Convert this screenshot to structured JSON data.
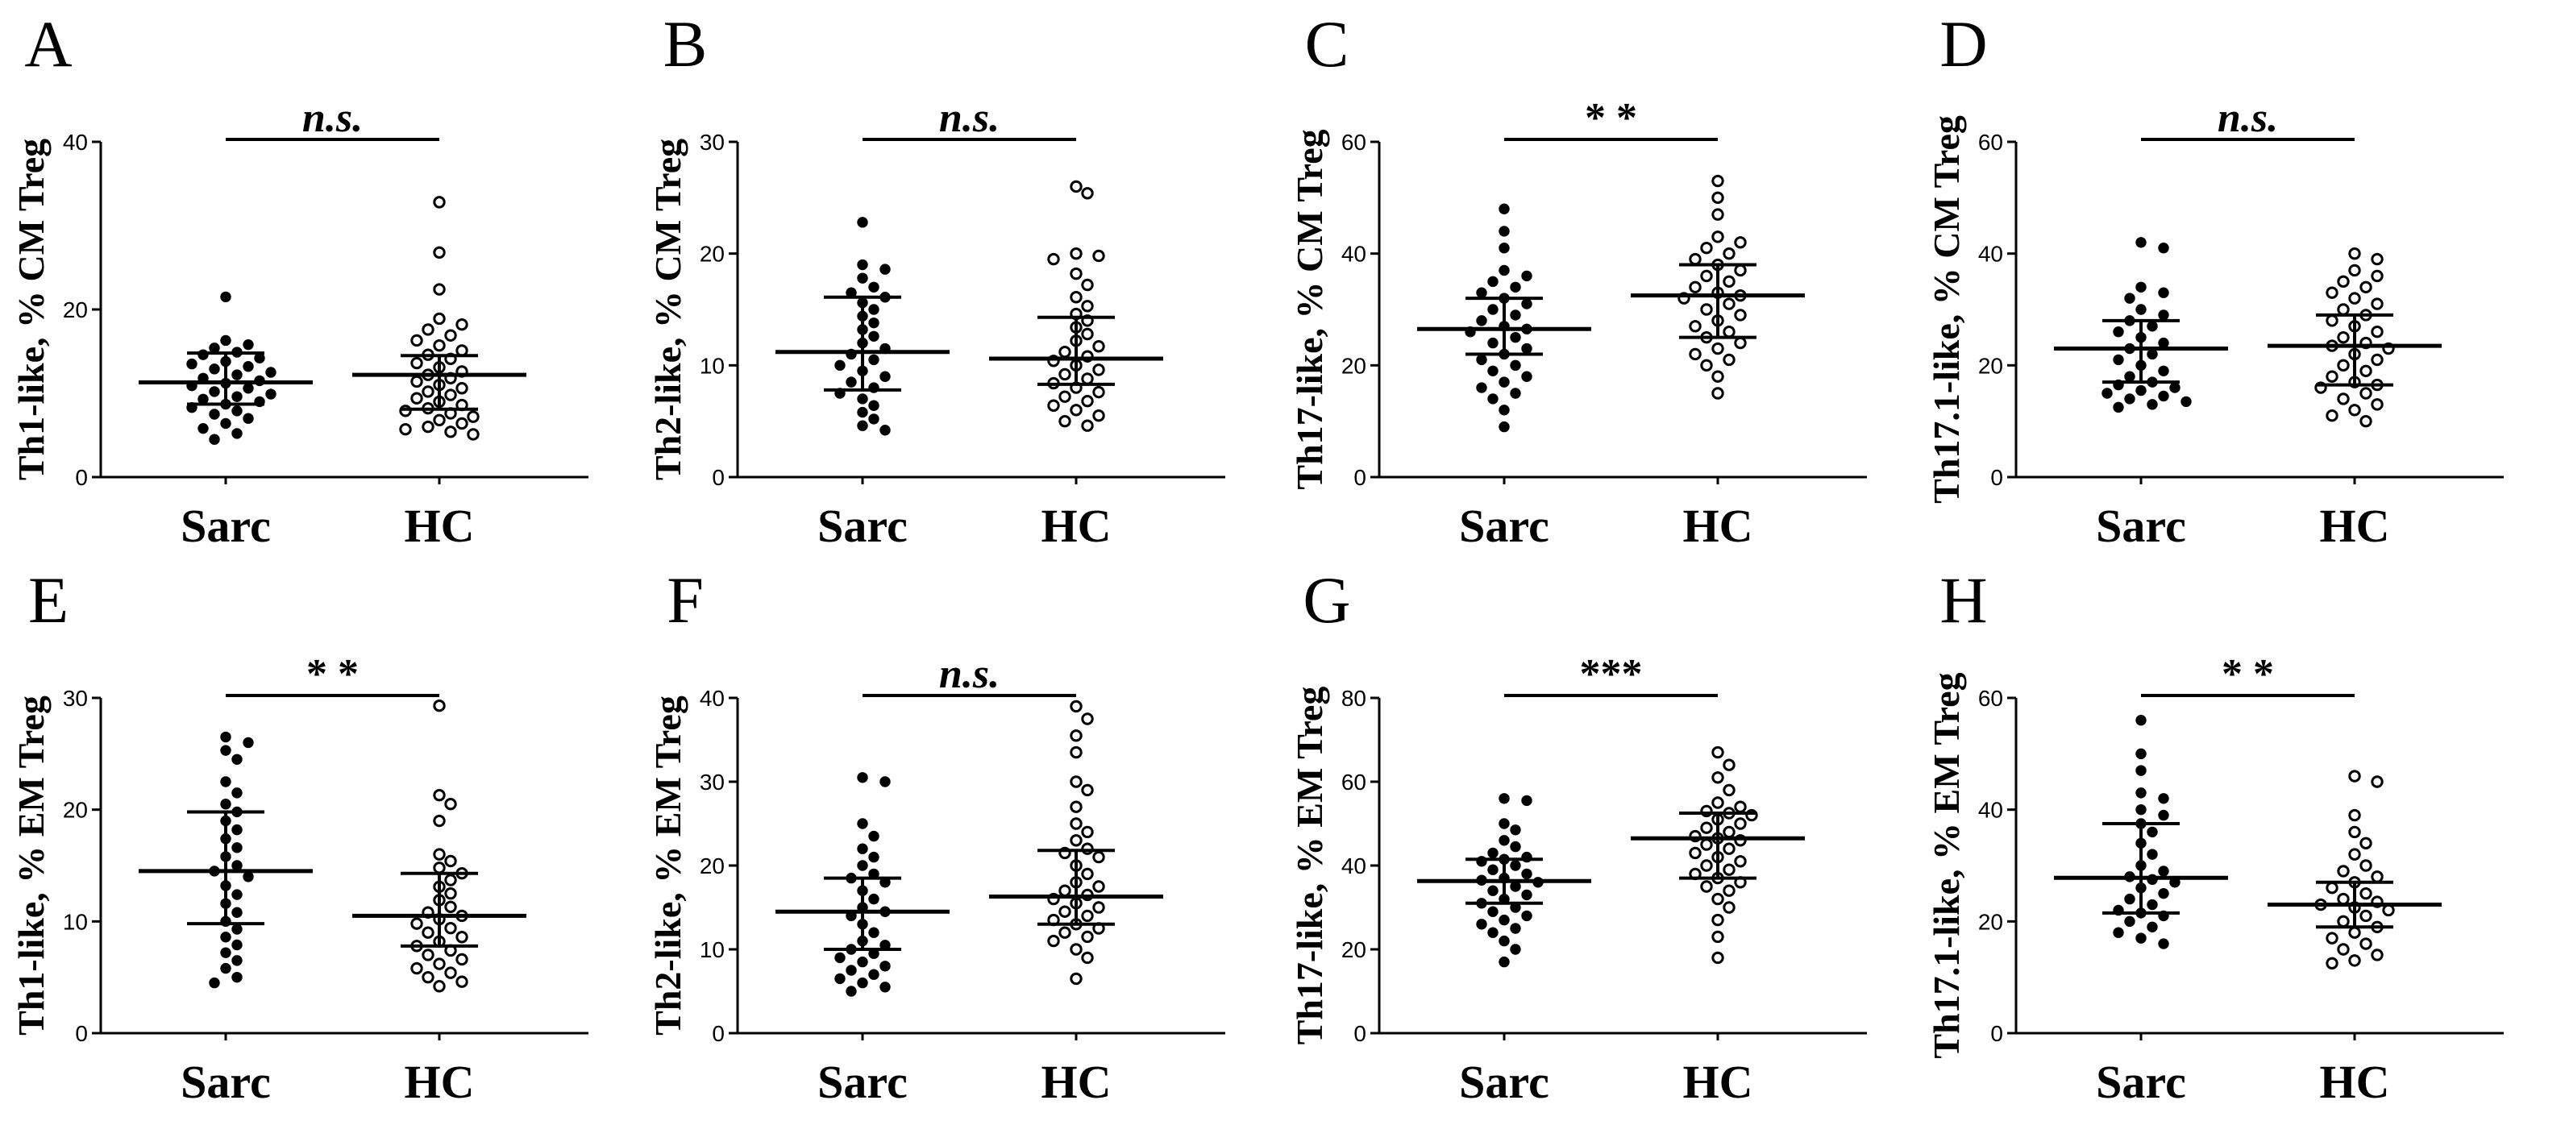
{
  "chart_data": [
    {
      "panel": "A",
      "type": "scatter",
      "ylabel": "Th1-like, % CM Treg",
      "ylim": [
        0,
        40
      ],
      "yticks": [
        0,
        20,
        40
      ],
      "categories": [
        "Sarc",
        "HC"
      ],
      "significance": "n.s.",
      "series": [
        {
          "name": "Sarc",
          "marker": "filled",
          "median": 11.3,
          "iqr": [
            8.7,
            14.8
          ],
          "values": [
            21.5,
            16.3,
            15.8,
            15.4,
            14.9,
            14.6,
            14.2,
            13.8,
            13.5,
            13.2,
            12.9,
            12.5,
            12.2,
            11.8,
            11.5,
            11.2,
            10.9,
            10.6,
            10.2,
            9.9,
            9.6,
            9.3,
            9.0,
            8.7,
            8.3,
            7.9,
            7.5,
            7.0,
            6.4,
            5.8,
            5.2,
            4.5
          ]
        },
        {
          "name": "HC",
          "marker": "open",
          "median": 12.2,
          "iqr": [
            8.1,
            14.5
          ],
          "values": [
            32.8,
            26.8,
            22.4,
            18.9,
            18.2,
            17.6,
            16.9,
            16.3,
            15.7,
            15.1,
            14.6,
            14.1,
            13.6,
            13.1,
            12.6,
            12.2,
            11.8,
            11.4,
            11.0,
            10.6,
            10.2,
            9.8,
            9.4,
            9.0,
            8.6,
            8.2,
            7.9,
            7.6,
            7.2,
            6.8,
            6.4,
            6.0,
            5.7,
            5.4,
            5.1
          ]
        }
      ]
    },
    {
      "panel": "B",
      "type": "scatter",
      "ylabel": "Th2-like, % CM Treg",
      "ylim": [
        0,
        30
      ],
      "yticks": [
        0,
        10,
        20,
        30
      ],
      "categories": [
        "Sarc",
        "HC"
      ],
      "significance": "n.s.",
      "series": [
        {
          "name": "Sarc",
          "marker": "filled",
          "median": 11.2,
          "iqr": [
            7.8,
            16.1
          ],
          "values": [
            22.8,
            19.0,
            18.6,
            17.8,
            17.0,
            16.5,
            16.1,
            15.6,
            15.0,
            14.4,
            13.8,
            13.2,
            12.6,
            12.0,
            11.5,
            11.0,
            10.5,
            10.0,
            9.5,
            9.0,
            8.5,
            8.0,
            7.5,
            7.0,
            6.4,
            5.8,
            5.2,
            4.6,
            4.2
          ]
        },
        {
          "name": "HC",
          "marker": "open",
          "median": 10.6,
          "iqr": [
            8.3,
            14.3
          ],
          "values": [
            26.0,
            25.4,
            20.0,
            19.8,
            19.5,
            18.2,
            17.2,
            16.1,
            15.3,
            14.6,
            14.0,
            13.4,
            12.8,
            12.2,
            11.7,
            11.2,
            10.8,
            10.4,
            10.0,
            9.6,
            9.2,
            8.8,
            8.4,
            8.0,
            7.6,
            7.2,
            6.8,
            6.4,
            6.0,
            5.5,
            5.0,
            4.6
          ]
        }
      ]
    },
    {
      "panel": "C",
      "type": "scatter",
      "ylabel": "Th17-like, % CM Treg",
      "ylim": [
        0,
        60
      ],
      "yticks": [
        0,
        20,
        40,
        60
      ],
      "categories": [
        "Sarc",
        "HC"
      ],
      "significance": "* *",
      "series": [
        {
          "name": "Sarc",
          "marker": "filled",
          "median": 26.5,
          "iqr": [
            22.0,
            32.0
          ],
          "values": [
            48.0,
            44.0,
            41.0,
            37.0,
            36.0,
            35.0,
            34.0,
            33.0,
            32.0,
            31.0,
            30.0,
            29.0,
            28.0,
            27.0,
            26.5,
            26.0,
            25.0,
            24.0,
            23.0,
            22.0,
            21.0,
            20.0,
            19.0,
            18.0,
            17.0,
            16.0,
            15.0,
            14.0,
            12.0,
            9.0
          ]
        },
        {
          "name": "HC",
          "marker": "open",
          "median": 32.5,
          "iqr": [
            25.0,
            38.0
          ],
          "values": [
            53.0,
            50.0,
            47.0,
            43.0,
            42.0,
            41.0,
            40.0,
            39.0,
            38.0,
            37.0,
            36.0,
            35.0,
            34.0,
            33.0,
            32.5,
            32.0,
            31.0,
            30.0,
            29.0,
            28.0,
            27.0,
            26.0,
            25.0,
            24.0,
            23.0,
            22.0,
            21.0,
            20.0,
            18.0,
            15.0
          ]
        }
      ]
    },
    {
      "panel": "D",
      "type": "scatter",
      "ylabel": "Th17.1-like, % CM Treg",
      "ylim": [
        0,
        60
      ],
      "yticks": [
        0,
        20,
        40,
        60
      ],
      "categories": [
        "Sarc",
        "HC"
      ],
      "significance": "n.s.",
      "series": [
        {
          "name": "Sarc",
          "marker": "filled",
          "median": 23.0,
          "iqr": [
            17.0,
            28.0
          ],
          "values": [
            42.0,
            41.0,
            34.0,
            33.0,
            32.0,
            30.0,
            29.0,
            28.0,
            27.0,
            26.0,
            25.0,
            24.0,
            23.0,
            22.0,
            21.0,
            20.0,
            19.0,
            18.0,
            17.0,
            16.5,
            16.0,
            15.5,
            15.0,
            14.5,
            14.0,
            13.5,
            13.0,
            12.5
          ]
        },
        {
          "name": "HC",
          "marker": "open",
          "median": 23.5,
          "iqr": [
            16.5,
            29.0
          ],
          "values": [
            40.0,
            39.0,
            37.0,
            36.0,
            35.0,
            34.0,
            33.0,
            32.0,
            31.0,
            30.0,
            29.0,
            28.0,
            27.0,
            26.0,
            25.0,
            24.0,
            23.5,
            23.0,
            22.0,
            21.0,
            20.0,
            19.0,
            18.0,
            17.0,
            16.5,
            16.0,
            15.0,
            14.0,
            13.0,
            12.0,
            11.0,
            10.0
          ]
        }
      ]
    },
    {
      "panel": "E",
      "type": "scatter",
      "ylabel": "Th1-like, % EM Treg",
      "ylim": [
        0,
        30
      ],
      "yticks": [
        0,
        10,
        20,
        30
      ],
      "categories": [
        "Sarc",
        "HC"
      ],
      "significance": "* *",
      "series": [
        {
          "name": "Sarc",
          "marker": "filled",
          "median": 14.5,
          "iqr": [
            9.8,
            19.8
          ],
          "values": [
            26.5,
            26.0,
            25.3,
            24.5,
            22.5,
            21.5,
            20.5,
            19.8,
            19.0,
            18.2,
            17.4,
            16.6,
            15.8,
            15.0,
            14.5,
            14.0,
            13.2,
            12.4,
            11.6,
            10.8,
            10.0,
            9.3,
            8.6,
            7.9,
            7.2,
            6.5,
            5.8,
            5.0,
            4.5
          ]
        },
        {
          "name": "HC",
          "marker": "open",
          "median": 10.5,
          "iqr": [
            7.8,
            14.3
          ],
          "values": [
            29.3,
            21.3,
            20.5,
            19.0,
            16.0,
            15.4,
            14.8,
            14.3,
            13.7,
            13.1,
            12.5,
            11.9,
            11.3,
            10.8,
            10.5,
            10.2,
            9.8,
            9.4,
            9.0,
            8.6,
            8.2,
            7.8,
            7.4,
            7.0,
            6.6,
            6.2,
            5.8,
            5.4,
            5.0,
            4.6,
            4.2
          ]
        }
      ]
    },
    {
      "panel": "F",
      "type": "scatter",
      "ylabel": "Th2-like, % EM Treg",
      "ylim": [
        0,
        40
      ],
      "yticks": [
        0,
        10,
        20,
        30,
        40
      ],
      "categories": [
        "Sarc",
        "HC"
      ],
      "significance": "n.s.",
      "series": [
        {
          "name": "Sarc",
          "marker": "filled",
          "median": 14.5,
          "iqr": [
            10.0,
            18.5
          ],
          "values": [
            30.5,
            30.0,
            25.0,
            23.5,
            22.0,
            21.0,
            20.0,
            19.0,
            18.5,
            18.0,
            17.0,
            16.0,
            15.0,
            14.5,
            14.0,
            13.0,
            12.0,
            11.0,
            10.5,
            10.0,
            9.5,
            9.0,
            8.5,
            8.0,
            7.5,
            7.0,
            6.5,
            6.0,
            5.5,
            5.0
          ]
        },
        {
          "name": "HC",
          "marker": "open",
          "median": 16.3,
          "iqr": [
            13.0,
            21.8
          ],
          "values": [
            39.0,
            37.5,
            35.5,
            33.5,
            30.0,
            29.0,
            27.0,
            25.0,
            24.0,
            23.0,
            22.0,
            21.5,
            21.0,
            20.0,
            19.0,
            18.0,
            17.5,
            17.0,
            16.5,
            16.0,
            15.5,
            15.0,
            14.5,
            14.0,
            13.5,
            13.0,
            12.5,
            12.0,
            11.5,
            11.0,
            10.0,
            9.0,
            6.5
          ]
        }
      ]
    },
    {
      "panel": "G",
      "type": "scatter",
      "ylabel": "Th17-like, % EM Treg",
      "ylim": [
        0,
        80
      ],
      "yticks": [
        0,
        20,
        40,
        60,
        80
      ],
      "categories": [
        "Sarc",
        "HC"
      ],
      "significance": "***",
      "series": [
        {
          "name": "Sarc",
          "marker": "filled",
          "median": 36.3,
          "iqr": [
            31.0,
            41.5
          ],
          "values": [
            56.0,
            55.5,
            50.0,
            48.5,
            46.0,
            44.5,
            43.0,
            42.0,
            41.5,
            41.0,
            40.0,
            39.0,
            38.0,
            37.0,
            36.5,
            36.0,
            35.0,
            34.0,
            33.0,
            32.0,
            31.0,
            30.0,
            29.0,
            28.0,
            27.0,
            26.0,
            25.0,
            24.0,
            22.0,
            20.0,
            17.0
          ]
        },
        {
          "name": "HC",
          "marker": "open",
          "median": 46.5,
          "iqr": [
            37.0,
            52.5
          ],
          "values": [
            67.0,
            64.0,
            61.0,
            58.0,
            55.0,
            54.0,
            53.0,
            52.5,
            52.0,
            51.0,
            50.0,
            49.0,
            48.0,
            47.0,
            46.5,
            46.0,
            45.0,
            44.0,
            43.0,
            42.0,
            41.0,
            40.0,
            39.0,
            38.0,
            37.0,
            36.0,
            35.0,
            34.0,
            32.0,
            30.0,
            27.0,
            23.0,
            18.0
          ]
        }
      ]
    },
    {
      "panel": "H",
      "type": "scatter",
      "ylabel": "Th17.1-like, % EM Treg",
      "ylim": [
        0,
        60
      ],
      "yticks": [
        0,
        20,
        40,
        60
      ],
      "categories": [
        "Sarc",
        "HC"
      ],
      "significance": "* *",
      "series": [
        {
          "name": "Sarc",
          "marker": "filled",
          "median": 27.8,
          "iqr": [
            21.5,
            37.5
          ],
          "values": [
            56.0,
            50.0,
            47.0,
            43.0,
            42.0,
            40.0,
            39.0,
            37.5,
            36.0,
            34.0,
            32.0,
            30.0,
            29.0,
            28.0,
            27.5,
            27.0,
            26.0,
            25.0,
            24.0,
            23.0,
            22.0,
            21.5,
            21.0,
            20.0,
            19.0,
            18.0,
            17.0,
            16.0
          ]
        },
        {
          "name": "HC",
          "marker": "open",
          "median": 23.0,
          "iqr": [
            19.0,
            27.0
          ],
          "values": [
            46.0,
            45.0,
            39.0,
            36.0,
            34.0,
            32.0,
            30.0,
            29.0,
            28.0,
            27.0,
            26.0,
            25.0,
            24.0,
            23.5,
            23.0,
            22.5,
            22.0,
            21.0,
            20.0,
            19.0,
            18.0,
            17.0,
            16.0,
            15.0,
            14.0,
            13.0,
            12.5
          ]
        }
      ]
    }
  ]
}
